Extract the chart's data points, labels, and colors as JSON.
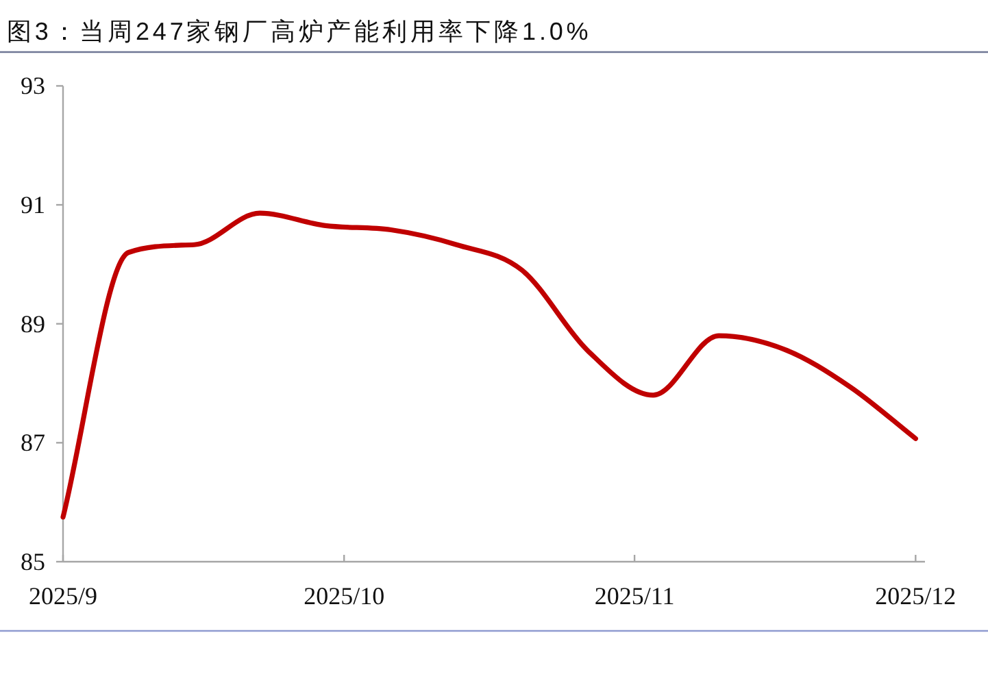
{
  "chart_data": {
    "type": "line",
    "title": "图3：当周247家钢厂高炉产能利用率下降1.0%",
    "x": [
      "2025-09-01",
      "2025-09-08",
      "2025-09-15",
      "2025-09-22",
      "2025-09-29",
      "2025-10-06",
      "2025-10-13",
      "2025-10-20",
      "2025-10-27",
      "2025-11-03",
      "2025-11-10",
      "2025-11-17",
      "2025-11-24",
      "2025-12-01"
    ],
    "series": [
      {
        "color": "#c00000",
        "values": [
          85.75,
          90.2,
          90.33,
          90.86,
          90.65,
          90.58,
          90.33,
          89.9,
          88.55,
          87.8,
          88.8,
          88.57,
          87.94,
          87.07
        ]
      }
    ],
    "xlim": [
      "2025-09-01",
      "2025-12-02"
    ],
    "xticks": [
      {
        "value": "2025-09-01",
        "label": "2025/9"
      },
      {
        "value": "2025-10-01",
        "label": "2025/10"
      },
      {
        "value": "2025-11-01",
        "label": "2025/11"
      },
      {
        "value": "2025-12-01",
        "label": "2025/12"
      }
    ],
    "ylim": [
      85,
      93
    ],
    "yticks": [
      85,
      87,
      89,
      91,
      93
    ]
  }
}
